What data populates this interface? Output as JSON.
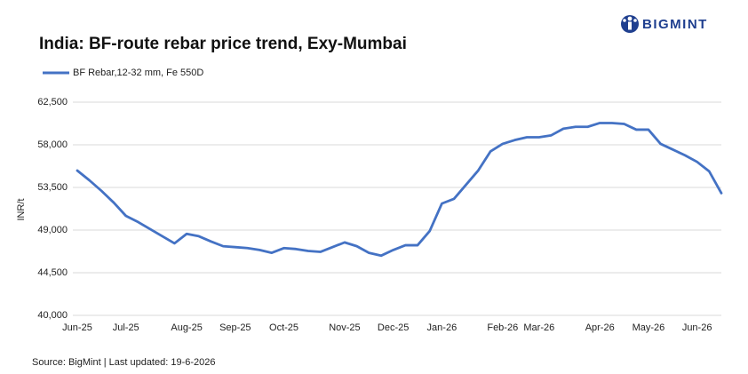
{
  "chart_data": {
    "type": "line",
    "logo": "BIGMINT",
    "title": "India: BF-route rebar price trend, Exy-Mumbai",
    "y_label": "INR/t",
    "source": "Source: BigMint | Last updated: 19-6-2026",
    "categories": [
      "Jun-25",
      null,
      null,
      null,
      "Jul-25",
      null,
      null,
      null,
      null,
      "Aug-25",
      null,
      null,
      null,
      "Sep-25",
      null,
      null,
      null,
      "Oct-25",
      null,
      null,
      null,
      null,
      "Nov-25",
      null,
      null,
      null,
      "Dec-25",
      null,
      null,
      null,
      "Jan-26",
      null,
      null,
      null,
      null,
      "Feb-26",
      null,
      null,
      "Mar-26",
      null,
      null,
      null,
      null,
      "Apr-26",
      null,
      null,
      null,
      "May-26",
      null,
      null,
      null,
      "Jun-26",
      null,
      null
    ],
    "series": [
      {
        "name": "BF Rebar,12-32 mm, Fe 550D",
        "color": "#4472c4",
        "values": [
          55280,
          54250,
          53125,
          51900,
          50500,
          49850,
          49100,
          48350,
          47600,
          48600,
          48350,
          47800,
          47300,
          47200,
          47100,
          46900,
          46600,
          47100,
          47000,
          46800,
          46700,
          47200,
          47700,
          47300,
          46600,
          46300,
          46900,
          47400,
          47400,
          48900,
          51800,
          52300,
          53800,
          55300,
          57300,
          58100,
          58500,
          58800,
          58800,
          59000,
          59700,
          59900,
          59900,
          60300,
          60300,
          60200,
          59600,
          59600,
          58100,
          57500,
          56900,
          56200,
          55200,
          52900
        ]
      }
    ],
    "ylim": [
      40000,
      62500
    ],
    "yticks": [
      {
        "value": 40000,
        "label": "40,000"
      },
      {
        "value": 44500,
        "label": "44,500"
      },
      {
        "value": 49000,
        "label": "49,000"
      },
      {
        "value": 53500,
        "label": "53,500"
      },
      {
        "value": 58000,
        "label": "58,000"
      },
      {
        "value": 62500,
        "label": "62,500"
      }
    ],
    "grid": true
  }
}
